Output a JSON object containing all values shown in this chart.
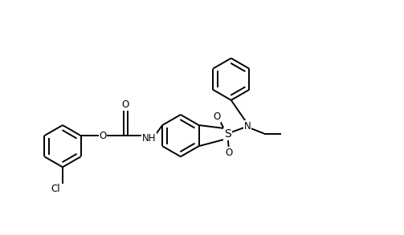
{
  "bg_color": "#ffffff",
  "line_color": "#000000",
  "line_width": 1.4,
  "font_size": 8.5,
  "fig_width": 5.03,
  "fig_height": 2.93,
  "dpi": 100,
  "xlim": [
    0,
    10
  ],
  "ylim": [
    0,
    5.82
  ]
}
